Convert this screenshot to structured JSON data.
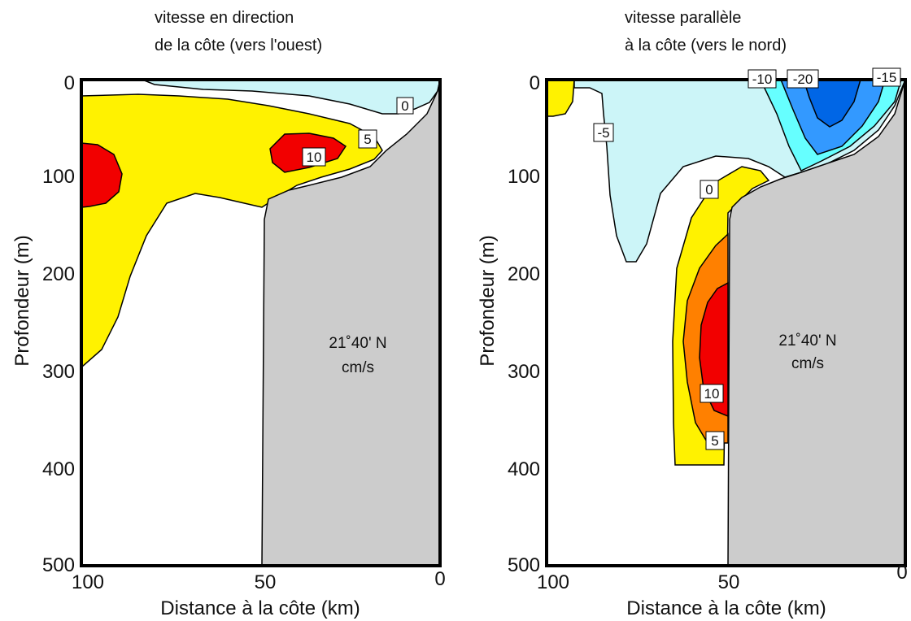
{
  "chart_data": [
    {
      "type": "contour",
      "title_lines": [
        "vitesse en direction",
        "de la côte (vers l'ouest)"
      ],
      "xlabel": "Distance à la côte (km)",
      "ylabel": "Profondeur (m)",
      "xlim": [
        100,
        0
      ],
      "ylim": [
        0,
        500
      ],
      "x_ticks": [
        "100",
        "50",
        "0"
      ],
      "y_ticks": [
        "0",
        "100",
        "200",
        "300",
        "400",
        "500"
      ],
      "annotation_lines": [
        "21˚40' N",
        "cm/s"
      ],
      "contour_levels": [
        0,
        5,
        10
      ],
      "contour_labels": [
        "0",
        "5",
        "10"
      ],
      "level_colors": {
        "negative": "#ccf5f8",
        "five": "#fff200",
        "ten": "#f20000"
      },
      "landmass_color": "#cccccc"
    },
    {
      "type": "contour",
      "title_lines": [
        "vitesse parallèle",
        "à la côte (vers le nord)"
      ],
      "xlabel": "Distance à la côte (km)",
      "ylabel": "Profondeur (m)",
      "xlim": [
        100,
        0
      ],
      "ylim": [
        0,
        500
      ],
      "x_ticks": [
        "100",
        "50",
        "0"
      ],
      "y_ticks": [
        "0",
        "100",
        "200",
        "300",
        "400",
        "500"
      ],
      "annotation_lines": [
        "21˚40' N",
        "cm/s"
      ],
      "contour_levels": [
        -20,
        -15,
        -10,
        -5,
        0,
        5,
        10
      ],
      "contour_labels": [
        "-10",
        "-20",
        "-15",
        "-5",
        "0",
        "10",
        "5"
      ],
      "level_colors": {
        "minus5": "#ccf5f8",
        "minus10": "#66ffff",
        "minus15": "#3399ff",
        "minus20": "#0066e6",
        "five": "#fff200",
        "ten": "#ff8000",
        "fifteen": "#f20000"
      },
      "landmass_color": "#cccccc"
    }
  ]
}
